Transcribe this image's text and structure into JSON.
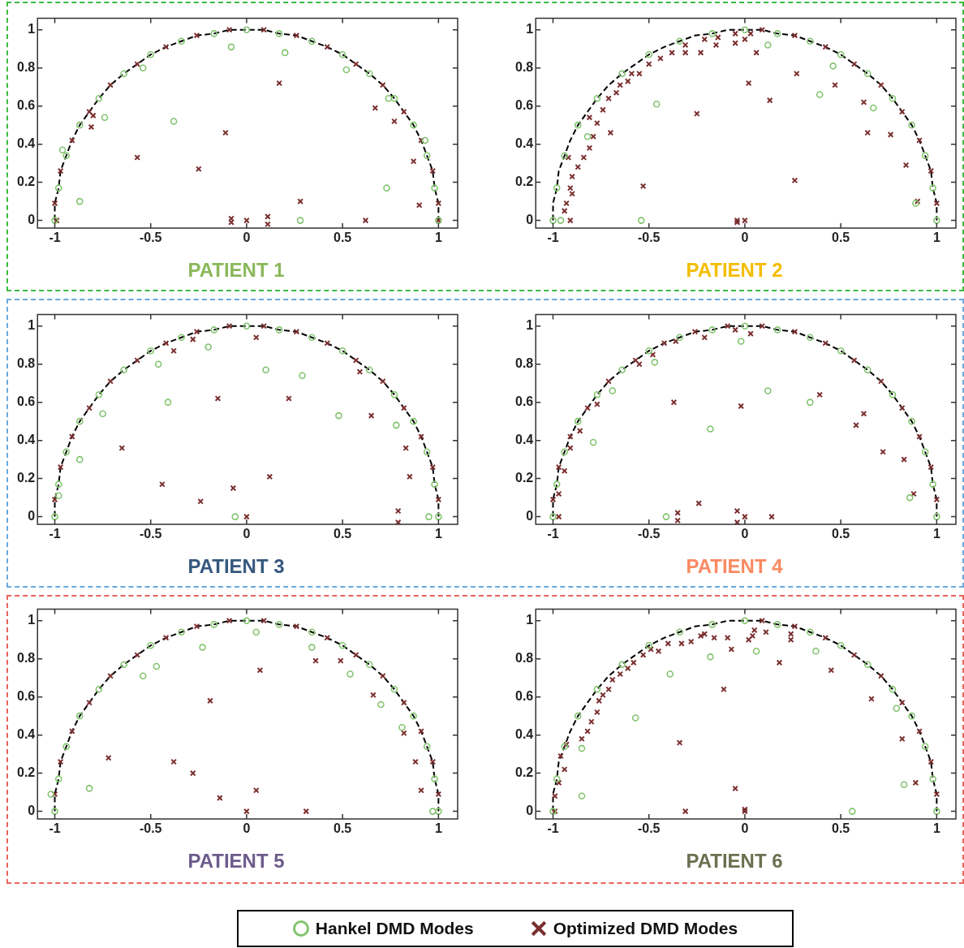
{
  "chart_data": [
    {
      "type": "scatter",
      "title": "PATIENT 1",
      "xlim": [
        -1.09,
        1.1
      ],
      "ylim": [
        -0.04,
        1.06
      ],
      "xticks": [
        -1,
        -0.5,
        0,
        0.5,
        1
      ],
      "yticks": [
        0,
        0.2,
        0.4,
        0.6,
        0.8,
        1
      ],
      "grid": false,
      "legend": "bottom",
      "series": [
        {
          "name": "Hankel DMD Modes",
          "type": "scatter",
          "marker": "circle",
          "color": "#82c46e",
          "x": [
            1,
            0.98,
            0.94,
            0.87,
            0.77,
            0.64,
            0.5,
            0.34,
            0.17,
            0,
            -0.17,
            -0.34,
            -0.5,
            -0.64,
            -0.77,
            -0.87,
            -0.94,
            -0.98,
            -1,
            -0.08,
            0.2,
            -0.54,
            0.52,
            -0.74,
            -0.38,
            -0.96,
            -0.87,
            0.28,
            0.73,
            0.93,
            0.74
          ],
          "values": [
            0,
            0.17,
            0.34,
            0.5,
            0.64,
            0.77,
            0.87,
            0.94,
            0.98,
            1,
            0.98,
            0.94,
            0.87,
            0.77,
            0.64,
            0.5,
            0.34,
            0.17,
            0,
            0.91,
            0.88,
            0.8,
            0.79,
            0.54,
            0.52,
            0.37,
            0.1,
            0,
            0.17,
            0.42,
            0.64
          ]
        },
        {
          "name": "Optimized DMD Modes",
          "type": "scatter",
          "marker": "cross",
          "color": "#7b2f2f",
          "x": [
            1,
            0.97,
            0.91,
            0.82,
            0.71,
            0.57,
            0.42,
            0.26,
            0.09,
            -0.09,
            -0.26,
            -0.42,
            -0.57,
            -0.71,
            -0.82,
            -0.91,
            -0.97,
            -1,
            0.17,
            0.67,
            0.77,
            -0.11,
            -0.57,
            -0.25,
            -0.81,
            0.87,
            0.9,
            0.28,
            -0.08,
            -0.08,
            0,
            0.11,
            0.11,
            0.62,
            -0.99,
            1,
            -0.8
          ],
          "values": [
            0.09,
            0.26,
            0.42,
            0.57,
            0.71,
            0.82,
            0.91,
            0.97,
            1,
            1,
            0.97,
            0.91,
            0.82,
            0.71,
            0.57,
            0.42,
            0.26,
            0.09,
            0.72,
            0.59,
            0.52,
            0.46,
            0.33,
            0.27,
            0.49,
            0.31,
            0.08,
            0.1,
            0.01,
            -0.01,
            0,
            0.02,
            -0.02,
            0,
            0,
            0,
            0.55
          ]
        },
        {
          "type": "line",
          "marker": "none",
          "line_style": "dashed",
          "color": "#000000",
          "x": [
            -1,
            -1,
            -0.98,
            -0.97,
            -0.94,
            -0.91,
            -0.87,
            -0.82,
            -0.77,
            -0.71,
            -0.64,
            -0.57,
            -0.5,
            -0.42,
            -0.34,
            -0.26,
            -0.17,
            -0.09,
            0,
            0.09,
            0.17,
            0.26,
            0.34,
            0.42,
            0.5,
            0.57,
            0.64,
            0.71,
            0.77,
            0.82,
            0.87,
            0.91,
            0.94,
            0.97,
            0.98,
            1,
            1
          ],
          "values": [
            0,
            0.09,
            0.17,
            0.26,
            0.34,
            0.42,
            0.5,
            0.57,
            0.64,
            0.71,
            0.77,
            0.82,
            0.87,
            0.91,
            0.94,
            0.97,
            0.98,
            1,
            1,
            1,
            0.98,
            0.97,
            0.94,
            0.91,
            0.87,
            0.82,
            0.77,
            0.71,
            0.64,
            0.57,
            0.5,
            0.42,
            0.34,
            0.26,
            0.17,
            0.09,
            0
          ]
        }
      ]
    },
    {
      "type": "scatter",
      "title": "PATIENT 2",
      "xlim": [
        -1.09,
        1.1
      ],
      "ylim": [
        -0.04,
        1.06
      ],
      "xticks": [
        -1,
        -0.5,
        0,
        0.5,
        1
      ],
      "yticks": [
        0,
        0.2,
        0.4,
        0.6,
        0.8,
        1
      ],
      "grid": false,
      "series": [
        {
          "type": "scatter",
          "marker": "circle",
          "color": "#82c46e",
          "x": [
            1,
            0.98,
            0.94,
            0.87,
            0.77,
            0.64,
            0.5,
            0.34,
            0.17,
            0,
            -0.17,
            -0.34,
            -0.5,
            -0.64,
            -0.77,
            -0.87,
            -0.94,
            -0.98,
            -1,
            0.12,
            0.46,
            0.39,
            0.67,
            -0.46,
            -0.82,
            -0.96,
            -0.54,
            0.89
          ],
          "values": [
            0,
            0.17,
            0.34,
            0.5,
            0.64,
            0.77,
            0.87,
            0.94,
            0.98,
            1,
            0.98,
            0.94,
            0.87,
            0.77,
            0.64,
            0.5,
            0.34,
            0.17,
            0,
            0.92,
            0.81,
            0.66,
            0.59,
            0.61,
            0.44,
            0,
            0,
            0.09
          ]
        },
        {
          "type": "scatter",
          "marker": "cross",
          "color": "#7b2f2f",
          "x": [
            1,
            0.97,
            0.91,
            0.82,
            0.71,
            0.57,
            0.42,
            0.26,
            0.09,
            -0.21,
            -0.14,
            -0.05,
            0,
            0.03,
            -0.05,
            -0.15,
            -0.31,
            -0.31,
            -0.23,
            -0.38,
            -0.44,
            -0.5,
            -0.55,
            -0.59,
            -0.61,
            -0.65,
            -0.67,
            -0.71,
            -0.74,
            -0.77,
            -0.81,
            -0.79,
            -0.81,
            -0.84,
            -0.87,
            -0.92,
            -0.9,
            -0.91,
            -0.9,
            -0.93,
            -0.94,
            -0.91,
            -0.7,
            -0.25,
            -0.53,
            0.06,
            0.27,
            0.02,
            0.13,
            0.47,
            0.62,
            0.64,
            0.76,
            0.84,
            0.26,
            -0.04,
            -0.04,
            0,
            0.9
          ],
          "values": [
            0.09,
            0.26,
            0.42,
            0.57,
            0.71,
            0.82,
            0.91,
            0.97,
            1,
            0.95,
            0.96,
            0.98,
            0.95,
            0.98,
            0.93,
            0.92,
            0.92,
            0.88,
            0.88,
            0.88,
            0.85,
            0.82,
            0.77,
            0.77,
            0.73,
            0.71,
            0.67,
            0.64,
            0.58,
            0.51,
            0.54,
            0.44,
            0.38,
            0.33,
            0.28,
            0.33,
            0.23,
            0.17,
            0.14,
            0.09,
            0.05,
            0,
            0.46,
            0.56,
            0.18,
            0.88,
            0.77,
            0.72,
            0.63,
            0.71,
            0.62,
            0.46,
            0.45,
            0.29,
            0.21,
            0,
            -0.01,
            0,
            0.1
          ]
        },
        {
          "type": "line",
          "marker": "none",
          "line_style": "dashed",
          "color": "#000000",
          "x": [
            -1,
            -1,
            -0.98,
            -0.97,
            -0.94,
            -0.91,
            -0.87,
            -0.82,
            -0.77,
            -0.71,
            -0.64,
            -0.57,
            -0.5,
            -0.42,
            -0.34,
            -0.26,
            -0.17,
            -0.09,
            0,
            0.09,
            0.17,
            0.26,
            0.34,
            0.42,
            0.5,
            0.57,
            0.64,
            0.71,
            0.77,
            0.82,
            0.87,
            0.91,
            0.94,
            0.97,
            0.98,
            1,
            1
          ],
          "values": [
            0,
            0.09,
            0.17,
            0.26,
            0.34,
            0.42,
            0.5,
            0.57,
            0.64,
            0.71,
            0.77,
            0.82,
            0.87,
            0.91,
            0.94,
            0.97,
            0.98,
            1,
            1,
            1,
            0.98,
            0.97,
            0.94,
            0.91,
            0.87,
            0.82,
            0.77,
            0.71,
            0.64,
            0.57,
            0.5,
            0.42,
            0.34,
            0.26,
            0.17,
            0.09,
            0
          ]
        }
      ]
    },
    {
      "type": "scatter",
      "title": "PATIENT 3",
      "xlim": [
        -1.09,
        1.1
      ],
      "ylim": [
        -0.04,
        1.06
      ],
      "xticks": [
        -1,
        -0.5,
        0,
        0.5,
        1
      ],
      "yticks": [
        0,
        0.2,
        0.4,
        0.6,
        0.8,
        1
      ],
      "grid": false,
      "series": [
        {
          "type": "scatter",
          "marker": "circle",
          "color": "#82c46e",
          "x": [
            1,
            0.98,
            0.94,
            0.87,
            0.77,
            0.64,
            0.5,
            0.34,
            0.17,
            0,
            -0.17,
            -0.34,
            -0.5,
            -0.64,
            -0.77,
            -0.87,
            -0.94,
            -0.98,
            -1,
            -0.2,
            -0.46,
            0.1,
            0.29,
            -0.41,
            -0.75,
            0.48,
            0.78,
            -0.87,
            -0.06,
            0.95,
            -0.98
          ],
          "values": [
            0,
            0.17,
            0.34,
            0.5,
            0.64,
            0.77,
            0.87,
            0.94,
            0.98,
            1,
            0.98,
            0.94,
            0.87,
            0.77,
            0.64,
            0.5,
            0.34,
            0.17,
            0,
            0.89,
            0.8,
            0.77,
            0.74,
            0.6,
            0.54,
            0.53,
            0.48,
            0.3,
            0,
            0,
            0.11
          ]
        },
        {
          "type": "scatter",
          "marker": "cross",
          "color": "#7b2f2f",
          "x": [
            1,
            0.97,
            0.91,
            0.82,
            0.71,
            0.57,
            0.42,
            0.26,
            0.09,
            -0.09,
            -0.26,
            -0.42,
            -0.57,
            -0.71,
            -0.82,
            -0.91,
            -0.97,
            -1,
            0.05,
            -0.15,
            0.22,
            0.65,
            0.83,
            0.85,
            0.79,
            0.79,
            0.12,
            -0.07,
            -0.24,
            -0.44,
            -0.65,
            0,
            -0.38,
            -0.28,
            0.59
          ],
          "values": [
            0.09,
            0.26,
            0.42,
            0.57,
            0.71,
            0.82,
            0.91,
            0.97,
            1,
            1,
            0.97,
            0.91,
            0.82,
            0.71,
            0.57,
            0.42,
            0.26,
            0.09,
            0.94,
            0.62,
            0.62,
            0.53,
            0.36,
            0.21,
            0.03,
            -0.03,
            0.21,
            0.15,
            0.08,
            0.17,
            0.36,
            0,
            0.87,
            0.93,
            0.76
          ]
        },
        {
          "type": "line",
          "marker": "none",
          "line_style": "dashed",
          "color": "#000000",
          "x": [
            -1,
            -1,
            -0.98,
            -0.97,
            -0.94,
            -0.91,
            -0.87,
            -0.82,
            -0.77,
            -0.71,
            -0.64,
            -0.57,
            -0.5,
            -0.42,
            -0.34,
            -0.26,
            -0.17,
            -0.09,
            0,
            0.09,
            0.17,
            0.26,
            0.34,
            0.42,
            0.5,
            0.57,
            0.64,
            0.71,
            0.77,
            0.82,
            0.87,
            0.91,
            0.94,
            0.97,
            0.98,
            1,
            1
          ],
          "values": [
            0,
            0.09,
            0.17,
            0.26,
            0.34,
            0.42,
            0.5,
            0.57,
            0.64,
            0.71,
            0.77,
            0.82,
            0.87,
            0.91,
            0.94,
            0.97,
            0.98,
            1,
            1,
            1,
            0.98,
            0.97,
            0.94,
            0.91,
            0.87,
            0.82,
            0.77,
            0.71,
            0.64,
            0.57,
            0.5,
            0.42,
            0.34,
            0.26,
            0.17,
            0.09,
            0
          ]
        }
      ]
    },
    {
      "type": "scatter",
      "title": "PATIENT 4",
      "xlim": [
        -1.09,
        1.1
      ],
      "ylim": [
        -0.04,
        1.06
      ],
      "xticks": [
        -1,
        -0.5,
        0,
        0.5,
        1
      ],
      "yticks": [
        0,
        0.2,
        0.4,
        0.6,
        0.8,
        1
      ],
      "grid": false,
      "series": [
        {
          "type": "scatter",
          "marker": "circle",
          "color": "#82c46e",
          "x": [
            1,
            0.98,
            0.94,
            0.87,
            0.77,
            0.64,
            0.5,
            0.34,
            0.17,
            0,
            -0.17,
            -0.34,
            -0.5,
            -0.64,
            -0.77,
            -0.87,
            -0.94,
            -0.98,
            -1,
            -0.02,
            -0.47,
            -0.69,
            0.12,
            0.34,
            -0.18,
            -0.79,
            -0.41,
            0.86
          ],
          "values": [
            0,
            0.17,
            0.34,
            0.5,
            0.64,
            0.77,
            0.87,
            0.94,
            0.98,
            1,
            0.98,
            0.94,
            0.87,
            0.77,
            0.64,
            0.5,
            0.34,
            0.17,
            0,
            0.92,
            0.81,
            0.66,
            0.66,
            0.6,
            0.46,
            0.39,
            0,
            0.1
          ]
        },
        {
          "type": "scatter",
          "marker": "cross",
          "color": "#7b2f2f",
          "x": [
            1,
            0.97,
            0.91,
            0.82,
            0.71,
            0.57,
            0.42,
            0.26,
            0.09,
            -0.09,
            -0.26,
            -0.42,
            -0.57,
            -0.71,
            -0.82,
            -0.91,
            -0.97,
            -1,
            -0.37,
            -0.02,
            0.39,
            0.62,
            0.58,
            0.72,
            0.83,
            0.88,
            -0.24,
            -0.35,
            -0.35,
            -0.04,
            -0.04,
            0,
            0.14,
            -0.97,
            -0.97,
            -0.94,
            -0.91,
            -0.86,
            -0.77,
            -0.55,
            -0.48,
            -0.36,
            -0.21,
            -0.05,
            0.03
          ],
          "values": [
            0.09,
            0.26,
            0.42,
            0.57,
            0.71,
            0.82,
            0.91,
            0.97,
            1,
            1,
            0.97,
            0.91,
            0.82,
            0.71,
            0.57,
            0.42,
            0.26,
            0.09,
            0.6,
            0.58,
            0.64,
            0.54,
            0.48,
            0.34,
            0.3,
            0.12,
            0.07,
            0.02,
            -0.02,
            0.03,
            -0.03,
            0,
            0,
            0,
            0.12,
            0.24,
            0.36,
            0.45,
            0.59,
            0.8,
            0.85,
            0.92,
            0.94,
            0.98,
            0.96
          ]
        },
        {
          "type": "line",
          "marker": "none",
          "line_style": "dashed",
          "color": "#000000",
          "x": [
            -1,
            -1,
            -0.98,
            -0.97,
            -0.94,
            -0.91,
            -0.87,
            -0.82,
            -0.77,
            -0.71,
            -0.64,
            -0.57,
            -0.5,
            -0.42,
            -0.34,
            -0.26,
            -0.17,
            -0.09,
            0,
            0.09,
            0.17,
            0.26,
            0.34,
            0.42,
            0.5,
            0.57,
            0.64,
            0.71,
            0.77,
            0.82,
            0.87,
            0.91,
            0.94,
            0.97,
            0.98,
            1,
            1
          ],
          "values": [
            0,
            0.09,
            0.17,
            0.26,
            0.34,
            0.42,
            0.5,
            0.57,
            0.64,
            0.71,
            0.77,
            0.82,
            0.87,
            0.91,
            0.94,
            0.97,
            0.98,
            1,
            1,
            1,
            0.98,
            0.97,
            0.94,
            0.91,
            0.87,
            0.82,
            0.77,
            0.71,
            0.64,
            0.57,
            0.5,
            0.42,
            0.34,
            0.26,
            0.17,
            0.09,
            0
          ]
        }
      ]
    },
    {
      "type": "scatter",
      "title": "PATIENT 5",
      "xlim": [
        -1.09,
        1.1
      ],
      "ylim": [
        -0.04,
        1.06
      ],
      "xticks": [
        -1,
        -0.5,
        0,
        0.5,
        1
      ],
      "yticks": [
        0,
        0.2,
        0.4,
        0.6,
        0.8,
        1
      ],
      "grid": false,
      "series": [
        {
          "type": "scatter",
          "marker": "circle",
          "color": "#82c46e",
          "x": [
            1,
            0.98,
            0.94,
            0.87,
            0.77,
            0.64,
            0.5,
            0.34,
            0.17,
            0,
            -0.17,
            -0.34,
            -0.5,
            -0.64,
            -0.77,
            -0.87,
            -0.94,
            -0.98,
            -1,
            0.05,
            -0.23,
            0.34,
            -0.47,
            -0.54,
            0.54,
            0.7,
            0.81,
            -0.82,
            -1.02,
            0.97
          ],
          "values": [
            0,
            0.17,
            0.34,
            0.5,
            0.64,
            0.77,
            0.87,
            0.94,
            0.98,
            1,
            0.98,
            0.94,
            0.87,
            0.77,
            0.64,
            0.5,
            0.34,
            0.17,
            0,
            0.94,
            0.86,
            0.86,
            0.76,
            0.71,
            0.72,
            0.56,
            0.44,
            0.12,
            0.09,
            0
          ]
        },
        {
          "type": "scatter",
          "marker": "cross",
          "color": "#7b2f2f",
          "x": [
            1,
            0.97,
            0.91,
            0.82,
            0.71,
            0.57,
            0.42,
            0.26,
            0.09,
            -0.09,
            -0.26,
            -0.42,
            -0.57,
            -0.71,
            -0.82,
            -0.91,
            -0.97,
            -1,
            0.07,
            0.36,
            0.49,
            0.66,
            0.82,
            0.88,
            0.91,
            -0.19,
            -0.72,
            -0.38,
            -0.28,
            -0.14,
            0.05,
            0,
            0.31
          ],
          "values": [
            0.09,
            0.26,
            0.42,
            0.57,
            0.71,
            0.82,
            0.91,
            0.97,
            1,
            1,
            0.97,
            0.91,
            0.82,
            0.71,
            0.57,
            0.42,
            0.26,
            0.09,
            0.74,
            0.79,
            0.79,
            0.61,
            0.41,
            0.26,
            0.11,
            0.58,
            0.28,
            0.26,
            0.2,
            0.07,
            0.11,
            0,
            0
          ]
        },
        {
          "type": "line",
          "marker": "none",
          "line_style": "dashed",
          "color": "#000000",
          "x": [
            -1,
            -1,
            -0.98,
            -0.97,
            -0.94,
            -0.91,
            -0.87,
            -0.82,
            -0.77,
            -0.71,
            -0.64,
            -0.57,
            -0.5,
            -0.42,
            -0.34,
            -0.26,
            -0.17,
            -0.09,
            0,
            0.09,
            0.17,
            0.26,
            0.34,
            0.42,
            0.5,
            0.57,
            0.64,
            0.71,
            0.77,
            0.82,
            0.87,
            0.91,
            0.94,
            0.97,
            0.98,
            1,
            1
          ],
          "values": [
            0,
            0.09,
            0.17,
            0.26,
            0.34,
            0.42,
            0.5,
            0.57,
            0.64,
            0.71,
            0.77,
            0.82,
            0.87,
            0.91,
            0.94,
            0.97,
            0.98,
            1,
            1,
            1,
            0.98,
            0.97,
            0.94,
            0.91,
            0.87,
            0.82,
            0.77,
            0.71,
            0.64,
            0.57,
            0.5,
            0.42,
            0.34,
            0.26,
            0.17,
            0.09,
            0
          ]
        }
      ]
    },
    {
      "type": "scatter",
      "title": "PATIENT 6",
      "xlim": [
        -1.09,
        1.1
      ],
      "ylim": [
        -0.04,
        1.06
      ],
      "xticks": [
        -1,
        -0.5,
        0,
        0.5,
        1
      ],
      "yticks": [
        0,
        0.2,
        0.4,
        0.6,
        0.8,
        1
      ],
      "grid": false,
      "series": [
        {
          "type": "scatter",
          "marker": "circle",
          "color": "#82c46e",
          "x": [
            1,
            0.98,
            0.94,
            0.87,
            0.77,
            0.64,
            0.5,
            0.34,
            0.17,
            0,
            -0.17,
            -0.34,
            -0.5,
            -0.64,
            -0.77,
            -0.87,
            -0.94,
            -0.98,
            -1,
            0.06,
            0.37,
            -0.18,
            -0.39,
            -0.57,
            -0.85,
            -0.85,
            0.79,
            0.83,
            0.56
          ],
          "values": [
            0,
            0.17,
            0.34,
            0.5,
            0.64,
            0.77,
            0.87,
            0.94,
            0.98,
            1,
            0.98,
            0.94,
            0.87,
            0.77,
            0.64,
            0.5,
            0.34,
            0.17,
            0,
            0.84,
            0.84,
            0.81,
            0.72,
            0.49,
            0.33,
            0.08,
            0.54,
            0.14,
            0
          ]
        },
        {
          "type": "scatter",
          "marker": "cross",
          "color": "#7b2f2f",
          "x": [
            1,
            0.97,
            0.91,
            0.82,
            0.71,
            0.57,
            0.42,
            0.26,
            0.09,
            0.05,
            0.11,
            0.04,
            0.02,
            0.24,
            0.24,
            -0.07,
            -0.09,
            -0.16,
            -0.21,
            -0.23,
            -0.28,
            -0.33,
            -0.4,
            -0.45,
            -0.49,
            -0.53,
            -0.58,
            -0.61,
            -0.65,
            -0.69,
            -0.71,
            -0.74,
            -0.76,
            -0.77,
            -0.8,
            -0.82,
            -0.85,
            -0.93,
            -0.96,
            -0.94,
            -0.97,
            -0.99,
            -0.99,
            0.18,
            0.45,
            -0.11,
            0.66,
            0.82,
            0.89,
            -0.34,
            -0.05,
            -0.31,
            0,
            0
          ],
          "values": [
            0.09,
            0.26,
            0.42,
            0.57,
            0.71,
            0.82,
            0.91,
            0.97,
            1,
            0.95,
            0.94,
            0.92,
            0.9,
            0.93,
            0.9,
            0.85,
            0.91,
            0.91,
            0.93,
            0.92,
            0.89,
            0.88,
            0.88,
            0.84,
            0.85,
            0.82,
            0.78,
            0.75,
            0.72,
            0.69,
            0.64,
            0.61,
            0.58,
            0.52,
            0.47,
            0.42,
            0.38,
            0.35,
            0.29,
            0.22,
            0.15,
            0.08,
            0,
            0.78,
            0.74,
            0.64,
            0.59,
            0.38,
            0.15,
            0.36,
            0.12,
            0,
            0,
            0.01
          ]
        },
        {
          "type": "line",
          "marker": "none",
          "line_style": "dashed",
          "color": "#000000",
          "x": [
            -1,
            -1,
            -0.98,
            -0.97,
            -0.94,
            -0.91,
            -0.87,
            -0.82,
            -0.77,
            -0.71,
            -0.64,
            -0.57,
            -0.5,
            -0.42,
            -0.34,
            -0.26,
            -0.17,
            -0.09,
            0,
            0.09,
            0.17,
            0.26,
            0.34,
            0.42,
            0.5,
            0.57,
            0.64,
            0.71,
            0.77,
            0.82,
            0.87,
            0.91,
            0.94,
            0.97,
            0.98,
            1,
            1
          ],
          "values": [
            0,
            0.09,
            0.17,
            0.26,
            0.34,
            0.42,
            0.5,
            0.57,
            0.64,
            0.71,
            0.77,
            0.82,
            0.87,
            0.91,
            0.94,
            0.97,
            0.98,
            1,
            1,
            1,
            0.98,
            0.97,
            0.94,
            0.91,
            0.87,
            0.82,
            0.77,
            0.71,
            0.64,
            0.57,
            0.5,
            0.42,
            0.34,
            0.26,
            0.17,
            0.09,
            0
          ]
        }
      ]
    }
  ]
}
